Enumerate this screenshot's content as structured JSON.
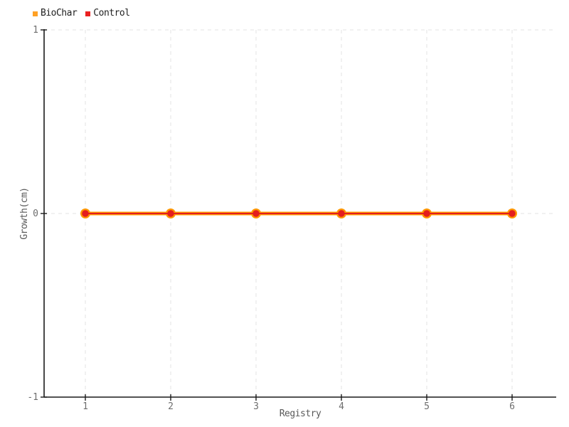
{
  "legend": {
    "items": [
      {
        "label": "BioChar",
        "color": "#FFA125"
      },
      {
        "label": "Control",
        "color": "#EA2121"
      }
    ]
  },
  "chart_data": {
    "type": "line",
    "title": "",
    "xlabel": "Registry",
    "ylabel": "Growth(cm)",
    "x": [
      1,
      2,
      3,
      4,
      5,
      6
    ],
    "series": [
      {
        "name": "BioChar",
        "color": "#FF9800",
        "values": [
          0,
          0,
          0,
          0,
          0,
          0
        ],
        "line_width": 5,
        "marker_radius": 7
      },
      {
        "name": "Control",
        "color": "#E31E1E",
        "values": [
          0,
          0,
          0,
          0,
          0,
          0
        ],
        "line_width": 2,
        "marker_radius": 4.8
      }
    ],
    "xlim": [
      0.5167,
      6.5167
    ],
    "ylim": [
      -1,
      1
    ],
    "xticks": [
      1,
      2,
      3,
      4,
      5,
      6
    ],
    "xtick_labels": [
      "1",
      "2",
      "3",
      "4",
      "5",
      "6"
    ],
    "yticks": [
      1,
      0,
      -1
    ],
    "ytick_labels": [
      "1",
      "0",
      "-1"
    ],
    "grid": "dashed",
    "legend_position": "top-left",
    "colors": {
      "grid": "#E3E3E3",
      "axis": "#1A1A1A",
      "tick_label": "#6E6E6E",
      "axis_label": "#5A5A5A",
      "legend_text": "#222222",
      "background": "#FFFFFF"
    }
  }
}
